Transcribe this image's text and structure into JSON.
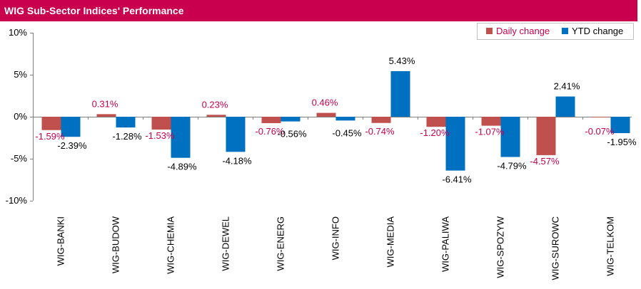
{
  "title": "WIG Sub-Sector Indices' Performance",
  "colors": {
    "header": "#c8004e",
    "daily": "#c0504d",
    "ytd": "#0070c0",
    "daily_label": "#c8004e",
    "ytd_label": "#000000"
  },
  "legend": {
    "daily": "Daily change",
    "ytd": "YTD change"
  },
  "chart_data": {
    "type": "bar",
    "title": "WIG Sub-Sector Indices' Performance",
    "categories": [
      "WIG-BANKI",
      "WIG-BUDOW",
      "WIG-CHEMIA",
      "WIG-DEWEL",
      "WIG-ENERG",
      "WIG-INFO",
      "WIG-MEDIA",
      "WIG-PALIWA",
      "WIG-SPOZYW",
      "WIG-SUROWC",
      "WIG-TELKOM"
    ],
    "series": [
      {
        "name": "Daily change",
        "values": [
          -1.59,
          0.31,
          -1.53,
          0.23,
          -0.76,
          0.46,
          -0.74,
          -1.2,
          -1.07,
          -4.57,
          -0.07
        ],
        "labels": [
          "-1.59%",
          "0.31%",
          "-1.53%",
          "0.23%",
          "-0.76%",
          "0.46%",
          "-0.74%",
          "-1.20%",
          "-1.07%",
          "-4.57%",
          "-0.07%"
        ]
      },
      {
        "name": "YTD change",
        "values": [
          -2.39,
          -1.28,
          -4.89,
          -4.18,
          -0.56,
          -0.45,
          5.43,
          -6.41,
          -4.79,
          2.41,
          -1.95
        ],
        "labels": [
          "-2.39%",
          "-1.28%",
          "-4.89%",
          "-4.18%",
          "-0.56%",
          "-0.45%",
          "5.43%",
          "-6.41%",
          "-4.79%",
          "2.41%",
          "-1.95%"
        ]
      }
    ],
    "yticks": [
      10,
      5,
      0,
      -5,
      -10
    ],
    "ytick_labels": [
      "10%",
      "5%",
      "0%",
      "-5%",
      "-10%"
    ],
    "ylim": [
      -10,
      10
    ],
    "legend_position": "top-right",
    "grid": false
  }
}
